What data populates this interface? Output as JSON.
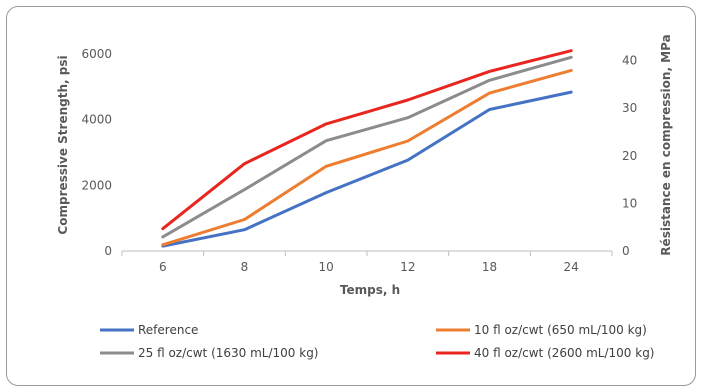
{
  "chart_data": {
    "type": "line",
    "title": "",
    "categories": [
      "6",
      "8",
      "10",
      "12",
      "18",
      "24"
    ],
    "xlabel": "Temps, h",
    "ylabel": "Compressive Strength, psi",
    "ylabel_right": "Résistance en compression, MPa",
    "ylim": [
      0,
      6500
    ],
    "ylim_right": [
      0,
      44.8
    ],
    "yticks": [
      "0",
      "2000",
      "4000",
      "6000"
    ],
    "yticks_right": [
      "0",
      "10",
      "20",
      "30",
      "40"
    ],
    "grid": false,
    "legend_position": "bottom",
    "series": [
      {
        "name": "Reference",
        "color": "#4472c4",
        "values": [
          150,
          650,
          1780,
          2770,
          4310,
          4840
        ]
      },
      {
        "name": "10 fl oz/cwt (650 mL/100 kg)",
        "color": "#ed7d31",
        "values": [
          190,
          960,
          2580,
          3350,
          4810,
          5500
        ]
      },
      {
        "name": "25 fl oz/cwt (1630 mL/100 kg)",
        "color": "#8c8c8c",
        "values": [
          430,
          1870,
          3360,
          4060,
          5200,
          5900
        ]
      },
      {
        "name": "40 fl oz/cwt (2600 mL/100 kg)",
        "color": "#e8261f",
        "values": [
          680,
          2660,
          3870,
          4600,
          5470,
          6100
        ]
      }
    ]
  }
}
